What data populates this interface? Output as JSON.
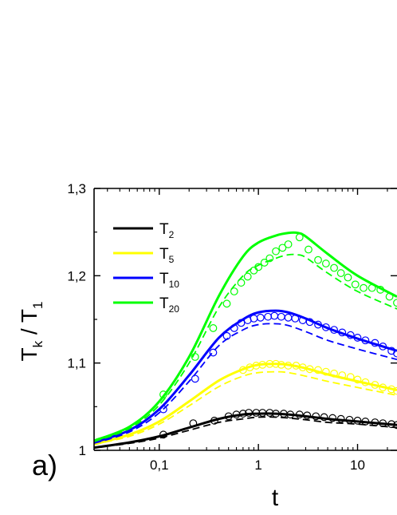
{
  "chart_data": {
    "type": "line",
    "panel_label": "a)",
    "xlabel": "t",
    "ylabel": {
      "main": "T",
      "sub": "k",
      "sep": " / ",
      "main2": "T",
      "sub2": "1"
    },
    "xscale": "log",
    "xlim": [
      0.022,
      25
    ],
    "ylim": [
      1.0,
      1.3
    ],
    "yticks": [
      {
        "value": 1.0,
        "label": "1"
      },
      {
        "value": 1.1,
        "label": "1,1"
      },
      {
        "value": 1.2,
        "label": "1,2"
      },
      {
        "value": 1.3,
        "label": "1,3"
      }
    ],
    "xticks": [
      {
        "value": 0.1,
        "label": "0,1"
      },
      {
        "value": 1,
        "label": "1"
      },
      {
        "value": 10,
        "label": "10"
      }
    ],
    "legend_position": "top-left",
    "series": [
      {
        "name": "T",
        "sub": "2",
        "color": "#000000",
        "solid": [
          [
            0.022,
            1.003
          ],
          [
            0.05,
            1.009
          ],
          [
            0.1,
            1.016
          ],
          [
            0.2,
            1.026
          ],
          [
            0.4,
            1.036
          ],
          [
            0.7,
            1.041
          ],
          [
            1.0,
            1.042
          ],
          [
            1.5,
            1.042
          ],
          [
            2,
            1.041
          ],
          [
            3,
            1.039
          ],
          [
            5,
            1.036
          ],
          [
            10,
            1.033
          ],
          [
            25,
            1.029
          ]
        ],
        "dashed": [
          [
            0.022,
            1.003
          ],
          [
            0.05,
            1.008
          ],
          [
            0.1,
            1.014
          ],
          [
            0.2,
            1.023
          ],
          [
            0.4,
            1.032
          ],
          [
            0.7,
            1.036
          ],
          [
            1.0,
            1.038
          ],
          [
            1.5,
            1.038
          ],
          [
            2,
            1.037
          ],
          [
            3,
            1.035
          ],
          [
            5,
            1.032
          ],
          [
            10,
            1.03
          ],
          [
            25,
            1.026
          ]
        ],
        "points": [
          [
            0.11,
            1.018
          ],
          [
            0.22,
            1.031
          ],
          [
            0.36,
            1.034
          ],
          [
            0.5,
            1.039
          ],
          [
            0.6,
            1.041
          ],
          [
            0.7,
            1.042
          ],
          [
            0.8,
            1.043
          ],
          [
            0.95,
            1.043
          ],
          [
            1.1,
            1.043
          ],
          [
            1.3,
            1.043
          ],
          [
            1.5,
            1.042
          ],
          [
            1.8,
            1.042
          ],
          [
            2.1,
            1.041
          ],
          [
            2.6,
            1.041
          ],
          [
            3.1,
            1.04
          ],
          [
            3.8,
            1.039
          ],
          [
            4.6,
            1.038
          ],
          [
            5.6,
            1.037
          ],
          [
            6.8,
            1.036
          ],
          [
            8.3,
            1.035
          ],
          [
            10,
            1.034
          ],
          [
            12,
            1.033
          ],
          [
            15,
            1.032
          ],
          [
            18,
            1.031
          ],
          [
            22,
            1.03
          ],
          [
            25,
            1.029
          ]
        ]
      },
      {
        "name": "T",
        "sub": "5",
        "color": "#ffff00",
        "solid": [
          [
            0.022,
            1.007
          ],
          [
            0.05,
            1.018
          ],
          [
            0.1,
            1.033
          ],
          [
            0.2,
            1.056
          ],
          [
            0.4,
            1.08
          ],
          [
            0.7,
            1.093
          ],
          [
            1.0,
            1.098
          ],
          [
            1.5,
            1.099
          ],
          [
            2,
            1.098
          ],
          [
            3,
            1.094
          ],
          [
            5,
            1.087
          ],
          [
            10,
            1.079
          ],
          [
            25,
            1.069
          ]
        ],
        "dashed": [
          [
            0.022,
            1.007
          ],
          [
            0.05,
            1.016
          ],
          [
            0.1,
            1.03
          ],
          [
            0.2,
            1.051
          ],
          [
            0.4,
            1.073
          ],
          [
            0.7,
            1.085
          ],
          [
            1.0,
            1.089
          ],
          [
            1.5,
            1.09
          ],
          [
            2,
            1.089
          ],
          [
            3,
            1.085
          ],
          [
            5,
            1.079
          ],
          [
            10,
            1.072
          ],
          [
            25,
            1.063
          ]
        ],
        "points": [
          [
            0.7,
            1.092
          ],
          [
            0.82,
            1.095
          ],
          [
            0.95,
            1.097
          ],
          [
            1.1,
            1.098
          ],
          [
            1.3,
            1.099
          ],
          [
            1.5,
            1.099
          ],
          [
            1.7,
            1.098
          ],
          [
            2.0,
            1.097
          ],
          [
            2.4,
            1.097
          ],
          [
            2.8,
            1.095
          ],
          [
            3.3,
            1.093
          ],
          [
            4.0,
            1.092
          ],
          [
            4.8,
            1.09
          ],
          [
            5.8,
            1.088
          ],
          [
            7.0,
            1.086
          ],
          [
            8.5,
            1.084
          ],
          [
            10,
            1.081
          ],
          [
            12,
            1.078
          ],
          [
            15,
            1.075
          ],
          [
            18,
            1.072
          ],
          [
            22,
            1.07
          ],
          [
            25,
            1.068
          ]
        ]
      },
      {
        "name": "T",
        "sub": "10",
        "color": "#0000ff",
        "solid": [
          [
            0.022,
            1.009
          ],
          [
            0.05,
            1.023
          ],
          [
            0.1,
            1.047
          ],
          [
            0.2,
            1.086
          ],
          [
            0.4,
            1.129
          ],
          [
            0.7,
            1.15
          ],
          [
            1.0,
            1.158
          ],
          [
            1.5,
            1.16
          ],
          [
            2,
            1.158
          ],
          [
            3,
            1.151
          ],
          [
            5,
            1.14
          ],
          [
            10,
            1.128
          ],
          [
            25,
            1.114
          ]
        ],
        "dashed": [
          [
            0.022,
            1.008
          ],
          [
            0.05,
            1.021
          ],
          [
            0.1,
            1.043
          ],
          [
            0.2,
            1.079
          ],
          [
            0.4,
            1.12
          ],
          [
            0.7,
            1.138
          ],
          [
            1.0,
            1.144
          ],
          [
            1.5,
            1.145
          ],
          [
            2,
            1.143
          ],
          [
            3,
            1.136
          ],
          [
            5,
            1.126
          ],
          [
            10,
            1.116
          ],
          [
            25,
            1.104
          ]
        ],
        "points": [
          [
            0.11,
            1.047
          ],
          [
            0.23,
            1.082
          ],
          [
            0.35,
            1.112
          ],
          [
            0.48,
            1.131
          ],
          [
            0.57,
            1.14
          ],
          [
            0.67,
            1.146
          ],
          [
            0.78,
            1.149
          ],
          [
            0.9,
            1.151
          ],
          [
            1.05,
            1.152
          ],
          [
            1.25,
            1.153
          ],
          [
            1.45,
            1.154
          ],
          [
            1.7,
            1.153
          ],
          [
            2.0,
            1.152
          ],
          [
            2.35,
            1.151
          ],
          [
            2.8,
            1.149
          ],
          [
            3.3,
            1.147
          ],
          [
            4.0,
            1.144
          ],
          [
            4.8,
            1.141
          ],
          [
            5.8,
            1.138
          ],
          [
            7,
            1.135
          ],
          [
            8.5,
            1.132
          ],
          [
            10,
            1.129
          ],
          [
            12,
            1.126
          ],
          [
            15,
            1.123
          ],
          [
            18,
            1.119
          ],
          [
            22,
            1.114
          ],
          [
            25,
            1.111
          ]
        ]
      },
      {
        "name": "T",
        "sub": "20",
        "color": "#00ff00",
        "solid": [
          [
            0.022,
            1.011
          ],
          [
            0.05,
            1.027
          ],
          [
            0.1,
            1.056
          ],
          [
            0.2,
            1.107
          ],
          [
            0.4,
            1.177
          ],
          [
            0.7,
            1.222
          ],
          [
            1.0,
            1.238
          ],
          [
            1.5,
            1.246
          ],
          [
            2,
            1.249
          ],
          [
            2.5,
            1.249
          ],
          [
            3,
            1.245
          ],
          [
            5,
            1.225
          ],
          [
            10,
            1.2
          ],
          [
            25,
            1.176
          ]
        ],
        "dashed": [
          [
            0.022,
            1.01
          ],
          [
            0.05,
            1.025
          ],
          [
            0.1,
            1.052
          ],
          [
            0.2,
            1.1
          ],
          [
            0.4,
            1.164
          ],
          [
            0.7,
            1.2
          ],
          [
            1.0,
            1.212
          ],
          [
            1.5,
            1.22
          ],
          [
            2,
            1.224
          ],
          [
            2.5,
            1.224
          ],
          [
            3,
            1.221
          ],
          [
            5,
            1.203
          ],
          [
            10,
            1.182
          ],
          [
            25,
            1.162
          ]
        ],
        "points": [
          [
            0.11,
            1.064
          ],
          [
            0.23,
            1.107
          ],
          [
            0.35,
            1.14
          ],
          [
            0.48,
            1.168
          ],
          [
            0.57,
            1.182
          ],
          [
            0.67,
            1.192
          ],
          [
            0.78,
            1.199
          ],
          [
            0.9,
            1.206
          ],
          [
            1.0,
            1.21
          ],
          [
            1.15,
            1.215
          ],
          [
            1.3,
            1.22
          ],
          [
            1.5,
            1.228
          ],
          [
            1.75,
            1.232
          ],
          [
            2.0,
            1.236
          ],
          [
            2.6,
            1.244
          ],
          [
            3.2,
            1.23
          ],
          [
            4.0,
            1.218
          ],
          [
            4.8,
            1.214
          ],
          [
            5.8,
            1.209
          ],
          [
            6.8,
            1.203
          ],
          [
            8,
            1.198
          ],
          [
            9.5,
            1.19
          ],
          [
            11.5,
            1.186
          ],
          [
            14,
            1.186
          ],
          [
            17,
            1.184
          ],
          [
            21,
            1.176
          ],
          [
            25,
            1.169
          ]
        ]
      }
    ]
  }
}
